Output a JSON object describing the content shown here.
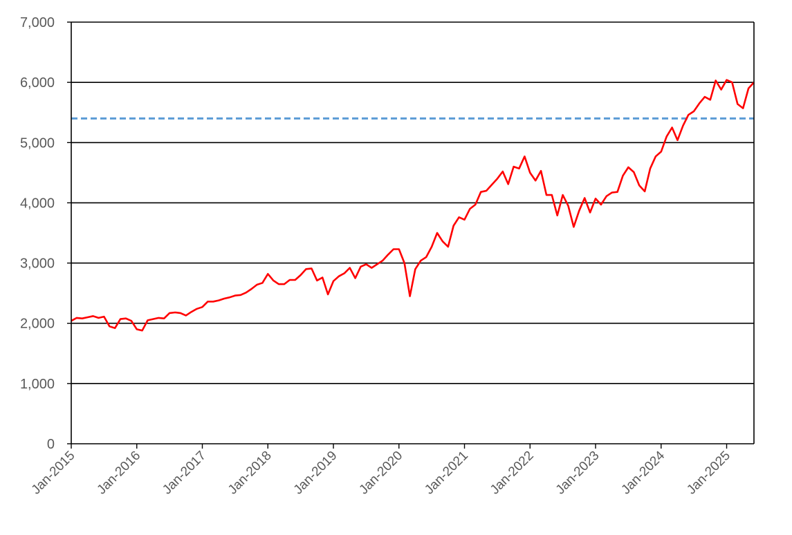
{
  "chart_data": {
    "type": "line",
    "title": "",
    "xlabel": "",
    "ylabel": "",
    "xlim": [
      "2015-01",
      "2025-06"
    ],
    "ylim": [
      0,
      7000
    ],
    "grid": "horizontal",
    "yticks": [
      0,
      1000,
      2000,
      3000,
      4000,
      5000,
      6000,
      7000
    ],
    "ytick_labels": [
      "0",
      "1,000",
      "2,000",
      "3,000",
      "4,000",
      "5,000",
      "6,000",
      "7,000"
    ],
    "xticks": [
      "2015-01",
      "2016-01",
      "2017-01",
      "2018-01",
      "2019-01",
      "2020-01",
      "2021-01",
      "2022-01",
      "2023-01",
      "2024-01",
      "2025-01"
    ],
    "xtick_labels": [
      "Jan-2015",
      "Jan-2016",
      "Jan-2017",
      "Jan-2018",
      "Jan-2019",
      "Jan-2020",
      "Jan-2021",
      "Jan-2022",
      "Jan-2023",
      "Jan-2024",
      "Jan-2025"
    ],
    "reference_line": {
      "y": 5400,
      "style": "dashed",
      "color": "#5B9BD5"
    },
    "series": [
      {
        "color": "#FF0000",
        "x": [
          "2015-01",
          "2015-02",
          "2015-03",
          "2015-04",
          "2015-05",
          "2015-06",
          "2015-07",
          "2015-08",
          "2015-09",
          "2015-10",
          "2015-11",
          "2015-12",
          "2016-01",
          "2016-02",
          "2016-03",
          "2016-04",
          "2016-05",
          "2016-06",
          "2016-07",
          "2016-08",
          "2016-09",
          "2016-10",
          "2016-11",
          "2016-12",
          "2017-01",
          "2017-02",
          "2017-03",
          "2017-04",
          "2017-05",
          "2017-06",
          "2017-07",
          "2017-08",
          "2017-09",
          "2017-10",
          "2017-11",
          "2017-12",
          "2018-01",
          "2018-02",
          "2018-03",
          "2018-04",
          "2018-05",
          "2018-06",
          "2018-07",
          "2018-08",
          "2018-09",
          "2018-10",
          "2018-11",
          "2018-12",
          "2019-01",
          "2019-02",
          "2019-03",
          "2019-04",
          "2019-05",
          "2019-06",
          "2019-07",
          "2019-08",
          "2019-09",
          "2019-10",
          "2019-11",
          "2019-12",
          "2020-01",
          "2020-02",
          "2020-03",
          "2020-04",
          "2020-05",
          "2020-06",
          "2020-07",
          "2020-08",
          "2020-09",
          "2020-10",
          "2020-11",
          "2020-12",
          "2021-01",
          "2021-02",
          "2021-03",
          "2021-04",
          "2021-05",
          "2021-06",
          "2021-07",
          "2021-08",
          "2021-09",
          "2021-10",
          "2021-11",
          "2021-12",
          "2022-01",
          "2022-02",
          "2022-03",
          "2022-04",
          "2022-05",
          "2022-06",
          "2022-07",
          "2022-08",
          "2022-09",
          "2022-10",
          "2022-11",
          "2022-12",
          "2023-01",
          "2023-02",
          "2023-03",
          "2023-04",
          "2023-05",
          "2023-06",
          "2023-07",
          "2023-08",
          "2023-09",
          "2023-10",
          "2023-11",
          "2023-12",
          "2024-01",
          "2024-02",
          "2024-03",
          "2024-04",
          "2024-05",
          "2024-06",
          "2024-07",
          "2024-08",
          "2024-09",
          "2024-10",
          "2024-11",
          "2024-12",
          "2025-01",
          "2025-02",
          "2025-03",
          "2025-04",
          "2025-05",
          "2025-06"
        ],
        "y": [
          2040,
          2090,
          2080,
          2100,
          2120,
          2090,
          2110,
          1950,
          1920,
          2070,
          2080,
          2040,
          1900,
          1880,
          2050,
          2070,
          2090,
          2080,
          2170,
          2180,
          2170,
          2130,
          2190,
          2240,
          2270,
          2360,
          2360,
          2380,
          2410,
          2430,
          2460,
          2470,
          2510,
          2570,
          2640,
          2670,
          2820,
          2710,
          2650,
          2650,
          2720,
          2720,
          2800,
          2900,
          2910,
          2710,
          2760,
          2480,
          2700,
          2780,
          2830,
          2920,
          2750,
          2940,
          2980,
          2920,
          2980,
          3040,
          3140,
          3230,
          3230,
          3000,
          2450,
          2900,
          3040,
          3100,
          3270,
          3500,
          3360,
          3270,
          3620,
          3760,
          3720,
          3900,
          3970,
          4180,
          4200,
          4300,
          4400,
          4520,
          4310,
          4600,
          4570,
          4770,
          4500,
          4370,
          4530,
          4130,
          4130,
          3790,
          4130,
          3950,
          3600,
          3870,
          4080,
          3840,
          4070,
          3970,
          4110,
          4170,
          4180,
          4450,
          4590,
          4510,
          4290,
          4190,
          4570,
          4770,
          4850,
          5100,
          5250,
          5040,
          5280,
          5460,
          5520,
          5650,
          5760,
          5710,
          6030,
          5880,
          6040,
          6000,
          5640,
          5570,
          5900,
          6000
        ]
      }
    ]
  }
}
